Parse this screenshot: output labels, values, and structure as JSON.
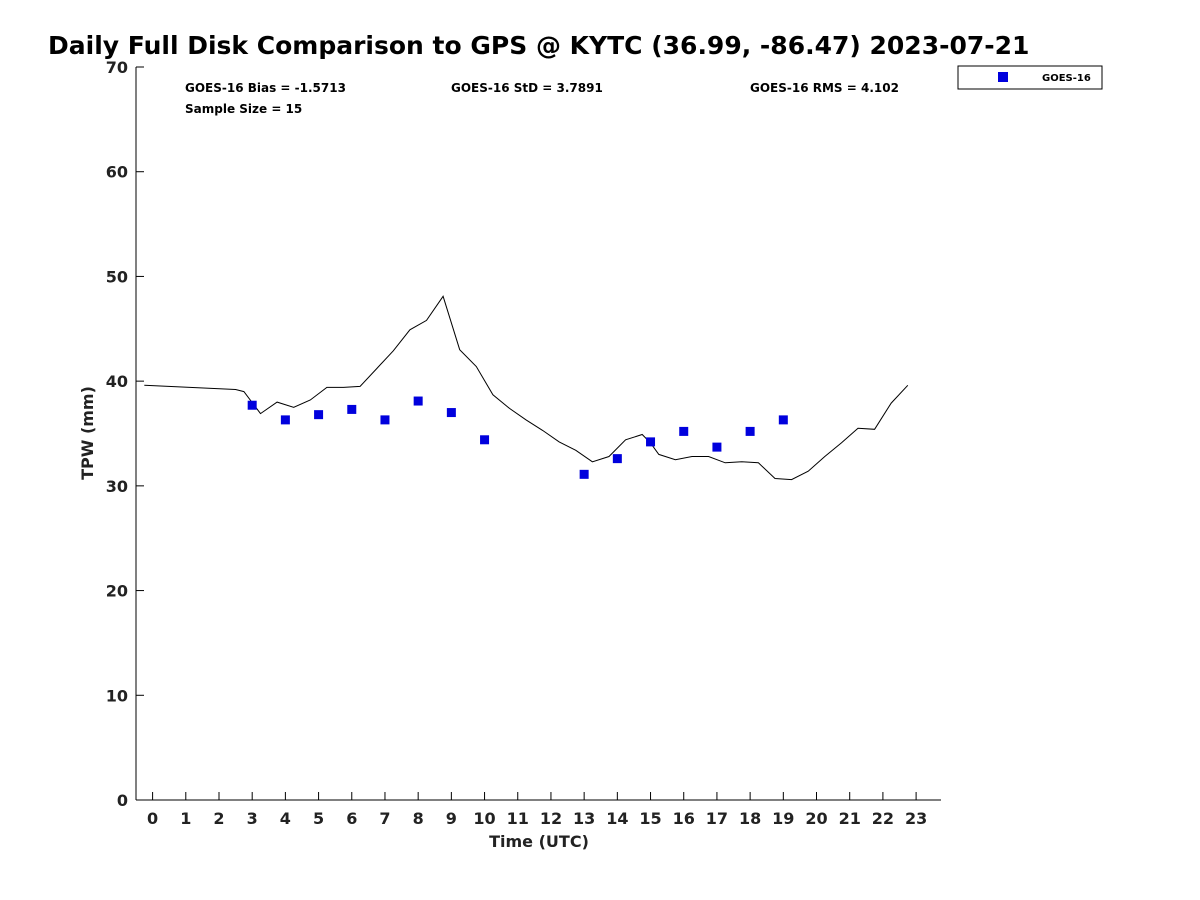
{
  "chart_data": {
    "type": "scatter",
    "title": "Daily Full Disk Comparison to GPS @ KYTC (36.99, -86.47) 2023-07-21",
    "xlabel": "Time (UTC)",
    "ylabel": "TPW (mm)",
    "xlim": [
      -0.5,
      23.75
    ],
    "ylim": [
      0,
      70
    ],
    "x_ticks": [
      0,
      1,
      2,
      3,
      4,
      5,
      6,
      7,
      8,
      9,
      10,
      11,
      12,
      13,
      14,
      15,
      16,
      17,
      18,
      19,
      20,
      21,
      22,
      23
    ],
    "y_ticks": [
      0,
      10,
      20,
      30,
      40,
      50,
      60,
      70
    ],
    "grid": false,
    "legend_position": "top-right outside",
    "stats": {
      "bias": "GOES-16 Bias = -1.5713",
      "std": "GOES-16 StD = 3.7891",
      "rms": "GOES-16 RMS = 4.102",
      "sample": "Sample Size = 15"
    },
    "series": [
      {
        "name": "GOES-16",
        "kind": "scatter",
        "color": "#0000dd",
        "x": [
          3,
          4,
          5,
          6,
          7,
          8,
          9,
          10,
          13,
          14,
          15,
          16,
          17,
          18,
          19
        ],
        "y": [
          37.7,
          36.3,
          36.8,
          37.3,
          36.3,
          38.1,
          37.0,
          34.4,
          31.1,
          32.6,
          34.2,
          35.2,
          33.7,
          35.2,
          36.3
        ]
      },
      {
        "kind": "line",
        "color": "#000000",
        "x": [
          -0.25,
          2.5,
          2.75,
          3.25,
          3.75,
          4.25,
          4.75,
          5.25,
          5.75,
          6.25,
          6.75,
          7.25,
          7.75,
          8.25,
          8.75,
          9.25,
          9.75,
          10.25,
          10.75,
          11.25,
          11.75,
          12.25,
          12.75,
          13.25,
          13.75,
          14.25,
          14.75,
          15.0,
          15.25,
          15.75,
          16.25,
          16.75,
          17.25,
          17.75,
          18.25,
          18.75,
          19.25,
          19.75,
          20.25,
          20.75,
          21.25,
          21.75,
          22.25,
          22.75
        ],
        "y": [
          39.6,
          39.2,
          39.0,
          36.9,
          38.0,
          37.5,
          38.2,
          39.4,
          39.4,
          39.5,
          41.2,
          42.9,
          44.9,
          45.8,
          48.1,
          43.0,
          41.4,
          38.7,
          37.4,
          36.3,
          35.3,
          34.2,
          33.4,
          32.3,
          32.8,
          34.4,
          34.9,
          34.1,
          33.0,
          32.5,
          32.8,
          32.8,
          32.2,
          32.3,
          32.2,
          30.7,
          30.6,
          31.4,
          32.8,
          34.1,
          35.5,
          35.4,
          37.9,
          39.6
        ]
      }
    ]
  }
}
